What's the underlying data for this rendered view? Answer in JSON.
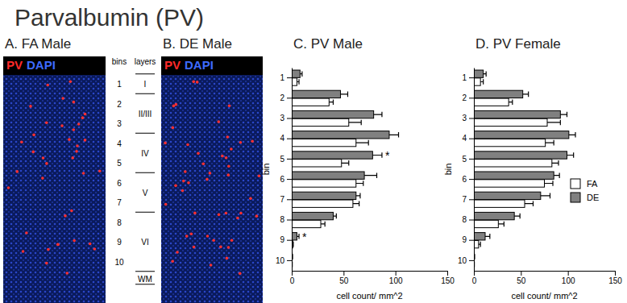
{
  "figure_title": "Parvalbumin (PV)",
  "images": [
    {
      "label": "A. FA Male",
      "stains": [
        "PV",
        "DAPI"
      ]
    },
    {
      "label": "B. DE Male",
      "stains": [
        "PV",
        "DAPI"
      ]
    }
  ],
  "bin_legend": {
    "bins_header": "bins",
    "layers_header": "layers",
    "bins": [
      1,
      2,
      3,
      4,
      5,
      6,
      7,
      8,
      9,
      10
    ],
    "layers": [
      "I",
      "II/III",
      "IV",
      "V",
      "VI",
      "WM"
    ]
  },
  "chart_data": [
    {
      "type": "bar",
      "orientation": "horizontal",
      "title": "C. PV Male",
      "x_label": "cell count/ mm^2",
      "y_label": "bin",
      "categories": [
        1,
        2,
        3,
        4,
        5,
        6,
        7,
        8,
        9,
        10
      ],
      "series": [
        {
          "name": "FA",
          "color": "#ffffff",
          "values": [
            5,
            36,
            55,
            62,
            48,
            62,
            59,
            28,
            1,
            0.3
          ],
          "errors": [
            2,
            4,
            12,
            12,
            7,
            7,
            6,
            4,
            0.5,
            0.2
          ]
        },
        {
          "name": "DE",
          "color": "#808080",
          "values": [
            8,
            47,
            79,
            94,
            78,
            70,
            62,
            40,
            5,
            0.5
          ],
          "errors": [
            2,
            7,
            8,
            9,
            9,
            12,
            4,
            3,
            2,
            0.3
          ]
        }
      ],
      "xlim": [
        0,
        150
      ],
      "xticks": [
        0,
        50,
        100,
        150
      ],
      "annotations": [
        {
          "text": "*",
          "category": 5
        },
        {
          "text": "*",
          "category": 9
        }
      ]
    },
    {
      "type": "bar",
      "orientation": "horizontal",
      "title": "D. PV Female",
      "x_label": "cell count/ mm^2",
      "y_label": "bin",
      "categories": [
        1,
        2,
        3,
        4,
        5,
        6,
        7,
        8,
        9,
        10
      ],
      "series": [
        {
          "name": "FA",
          "color": "#ffffff",
          "values": [
            7,
            37,
            78,
            76,
            83,
            75,
            54,
            26,
            5,
            0.3
          ],
          "errors": [
            3,
            4,
            14,
            9,
            7,
            9,
            9,
            6,
            2,
            0.2
          ]
        },
        {
          "name": "DE",
          "color": "#808080",
          "values": [
            10,
            52,
            92,
            101,
            99,
            85,
            71,
            43,
            12,
            0.5
          ],
          "errors": [
            3,
            6,
            7,
            7,
            7,
            6,
            10,
            6,
            5,
            0.3
          ]
        }
      ],
      "xlim": [
        0,
        150
      ],
      "xticks": [
        0,
        50,
        100,
        150
      ],
      "legend": "bottom-right"
    }
  ]
}
